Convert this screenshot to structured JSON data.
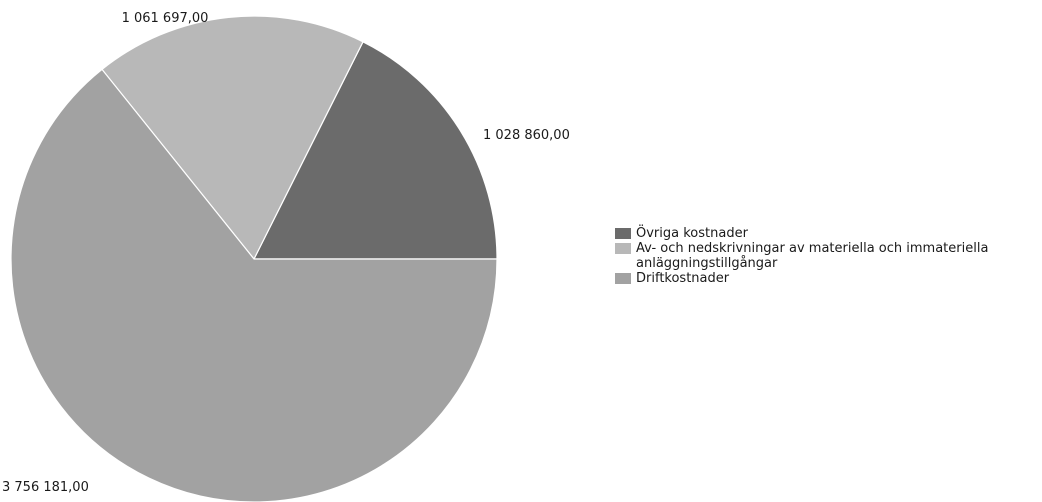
{
  "chart_data": {
    "type": "pie",
    "title": "",
    "legend_position": "right",
    "slices": [
      {
        "name": "Övriga kostnader",
        "value": 1028860.0,
        "label": "1 028 860,00",
        "color": "#6b6b6b"
      },
      {
        "name": "Av- och nedskrivningar av materiella och immateriella anläggningstillgångar",
        "value": 1061697.0,
        "label": "1 061 697,00",
        "color": "#b8b8b8"
      },
      {
        "name": "Driftkostnader",
        "value": 3756181.0,
        "label": "3 756 181,00",
        "color": "#a2a2a2"
      }
    ]
  }
}
